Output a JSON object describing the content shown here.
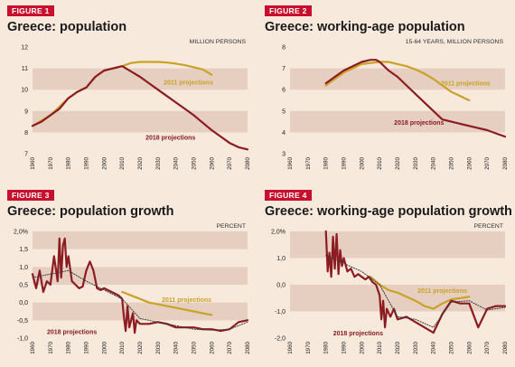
{
  "colors": {
    "background": "#f7e9dc",
    "band": "#e6cfc0",
    "badge": "#c8102e",
    "series_2018": "#8c1c22",
    "series_2011": "#c9a227",
    "trend": "#3a3a3a"
  },
  "panels": [
    {
      "badge": "FIGURE 1",
      "title": "Greece: population",
      "unit": "MILLION PERSONS"
    },
    {
      "badge": "FIGURE 2",
      "title": "Greece: working-age population",
      "unit": "15-64 YEARS, MILLION PERSONS"
    },
    {
      "badge": "FIGURE 3",
      "title": "Greece: population growth",
      "unit": "PERCENT"
    },
    {
      "badge": "FIGURE 4",
      "title": "Greece: working-age population growth",
      "unit": "PERCENT"
    }
  ],
  "chart_data": [
    {
      "type": "line",
      "title": "Greece: population",
      "ylabel": "MILLION PERSONS",
      "ylim": [
        7,
        12
      ],
      "yticks": [
        7,
        8,
        9,
        10,
        11,
        12
      ],
      "ytick_labels": [
        "7",
        "8",
        "9",
        "10",
        "11",
        "12"
      ],
      "xlim": [
        1960,
        2080
      ],
      "xticks": [
        1960,
        1970,
        1980,
        1990,
        2000,
        2010,
        2020,
        2030,
        2040,
        2050,
        2060,
        2070,
        2080
      ],
      "grid": "horizontal bands",
      "series": [
        {
          "name": "2011 projections",
          "x": [
            1960,
            1970,
            1980,
            1985,
            1990,
            1995,
            2000,
            2005,
            2010,
            2015,
            2020,
            2025,
            2030,
            2035,
            2040,
            2045,
            2050,
            2055,
            2060
          ],
          "y": [
            8.3,
            8.8,
            9.6,
            9.9,
            10.1,
            10.6,
            10.9,
            11.0,
            11.1,
            11.25,
            11.3,
            11.3,
            11.3,
            11.27,
            11.22,
            11.15,
            11.05,
            10.95,
            10.7
          ]
        },
        {
          "name": "2018 projections",
          "x": [
            1960,
            1965,
            1970,
            1975,
            1980,
            1985,
            1990,
            1995,
            2000,
            2005,
            2010,
            2015,
            2020,
            2025,
            2030,
            2035,
            2040,
            2045,
            2050,
            2055,
            2060,
            2065,
            2070,
            2075,
            2080
          ],
          "y": [
            8.3,
            8.5,
            8.8,
            9.1,
            9.6,
            9.9,
            10.1,
            10.6,
            10.9,
            11.0,
            11.1,
            10.85,
            10.6,
            10.3,
            10.0,
            9.7,
            9.4,
            9.1,
            8.8,
            8.45,
            8.1,
            7.8,
            7.5,
            7.3,
            7.2
          ]
        }
      ],
      "annotations": [
        "2011 projections",
        "2018 projections"
      ]
    },
    {
      "type": "line",
      "title": "Greece: working-age population",
      "ylabel": "15-64 YEARS, MILLION PERSONS",
      "ylim": [
        3,
        8
      ],
      "yticks": [
        3,
        4,
        5,
        6,
        7,
        8
      ],
      "ytick_labels": [
        "3",
        "4",
        "5",
        "6",
        "7",
        "8"
      ],
      "xlim": [
        1960,
        2080
      ],
      "xticks": [
        1960,
        1970,
        1980,
        1990,
        2000,
        2010,
        2020,
        2030,
        2040,
        2050,
        2060,
        2070,
        2080
      ],
      "grid": "horizontal bands",
      "series": [
        {
          "name": "2011 projections",
          "x": [
            1980,
            1985,
            1990,
            1995,
            2000,
            2005,
            2010,
            2015,
            2020,
            2025,
            2030,
            2035,
            2040,
            2045,
            2050,
            2055,
            2060
          ],
          "y": [
            6.2,
            6.5,
            6.8,
            7.0,
            7.2,
            7.25,
            7.3,
            7.3,
            7.2,
            7.1,
            6.95,
            6.75,
            6.5,
            6.2,
            5.9,
            5.7,
            5.5
          ]
        },
        {
          "name": "2018 projections",
          "x": [
            1980,
            1985,
            1990,
            1995,
            2000,
            2005,
            2008,
            2010,
            2015,
            2020,
            2025,
            2030,
            2035,
            2040,
            2045,
            2050,
            2055,
            2060,
            2065,
            2070,
            2075,
            2080
          ],
          "y": [
            6.3,
            6.6,
            6.9,
            7.1,
            7.3,
            7.4,
            7.4,
            7.3,
            6.9,
            6.6,
            6.2,
            5.8,
            5.4,
            5.0,
            4.6,
            4.5,
            4.4,
            4.3,
            4.2,
            4.1,
            3.95,
            3.8
          ]
        }
      ],
      "annotations": [
        "2011 projections",
        "2018 projections"
      ]
    },
    {
      "type": "line",
      "title": "Greece: population growth",
      "ylabel": "PERCENT",
      "ylim": [
        -1.0,
        2.0
      ],
      "yticks": [
        2.0,
        1.5,
        1.0,
        0.5,
        0.0,
        -0.5,
        -1.0
      ],
      "ytick_labels": [
        "2,0%",
        "1,5",
        "1,0",
        "0,5",
        "0,0",
        "-0,5",
        "-1,0"
      ],
      "xlim": [
        1960,
        2080
      ],
      "xticks": [
        1960,
        1970,
        1980,
        1990,
        2000,
        2010,
        2020,
        2030,
        2040,
        2050,
        2060,
        2070,
        2080
      ],
      "grid": "horizontal bands",
      "series": [
        {
          "name": "2011 projections",
          "x": [
            2010,
            2015,
            2020,
            2025,
            2030,
            2035,
            2040,
            2045,
            2050,
            2055,
            2060
          ],
          "y": [
            0.3,
            0.2,
            0.1,
            0.0,
            -0.05,
            -0.1,
            -0.15,
            -0.2,
            -0.25,
            -0.3,
            -0.35
          ]
        },
        {
          "name": "2018 projections",
          "x": [
            1960,
            1962,
            1964,
            1966,
            1968,
            1970,
            1972,
            1974,
            1975,
            1976,
            1977,
            1978,
            1979,
            1980,
            1982,
            1984,
            1986,
            1988,
            1990,
            1992,
            1994,
            1996,
            1998,
            2000,
            2002,
            2004,
            2006,
            2008,
            2010,
            2011,
            2012,
            2013,
            2014,
            2015,
            2016,
            2017,
            2018,
            2020,
            2025,
            2030,
            2035,
            2040,
            2045,
            2050,
            2055,
            2060,
            2065,
            2070,
            2075,
            2080
          ],
          "y": [
            0.8,
            0.4,
            0.9,
            0.3,
            0.6,
            0.5,
            1.3,
            0.6,
            1.8,
            0.7,
            1.6,
            1.8,
            1.0,
            1.3,
            0.6,
            0.5,
            0.4,
            0.45,
            0.9,
            1.15,
            0.9,
            0.4,
            0.35,
            0.4,
            0.35,
            0.3,
            0.25,
            0.2,
            0.1,
            -0.4,
            -0.8,
            -0.1,
            -0.7,
            -0.5,
            -0.3,
            -0.85,
            -0.5,
            -0.6,
            -0.6,
            -0.55,
            -0.6,
            -0.7,
            -0.7,
            -0.7,
            -0.75,
            -0.75,
            -0.8,
            -0.75,
            -0.55,
            -0.5
          ]
        },
        {
          "name": "",
          "style": "dotted",
          "x": [
            1960,
            1970,
            1980,
            1990,
            2000,
            2010,
            2020,
            2030,
            2040,
            2050,
            2060,
            2070,
            2080
          ],
          "y": [
            0.7,
            0.8,
            0.9,
            0.6,
            0.35,
            0.1,
            -0.45,
            -0.55,
            -0.65,
            -0.75,
            -0.78,
            -0.75,
            -0.55
          ]
        }
      ],
      "annotations": [
        "2011 projections",
        "2018 projections"
      ]
    },
    {
      "type": "line",
      "title": "Greece: working-age population growth",
      "ylabel": "PERCENT",
      "ylim": [
        -2.0,
        2.0
      ],
      "yticks": [
        2.0,
        1.0,
        0.0,
        -1.0,
        -2.0
      ],
      "ytick_labels": [
        "2,0%",
        "1,0",
        "0,0",
        "-1,0",
        "-2,0"
      ],
      "xlim": [
        1960,
        2080
      ],
      "xticks": [
        1960,
        1970,
        1980,
        1990,
        2000,
        2010,
        2020,
        2030,
        2040,
        2050,
        2060,
        2070,
        2080
      ],
      "grid": "horizontal bands",
      "series": [
        {
          "name": "2011 projections",
          "x": [
            2005,
            2010,
            2015,
            2020,
            2025,
            2030,
            2035,
            2040,
            2045,
            2050,
            2055,
            2060
          ],
          "y": [
            0.3,
            0.0,
            -0.2,
            -0.3,
            -0.45,
            -0.6,
            -0.8,
            -0.9,
            -0.7,
            -0.55,
            -0.5,
            -0.45
          ]
        },
        {
          "name": "2018 projections",
          "x": [
            1980,
            1981,
            1982,
            1983,
            1984,
            1985,
            1986,
            1987,
            1988,
            1989,
            1990,
            1992,
            1994,
            1996,
            1998,
            2000,
            2002,
            2004,
            2006,
            2008,
            2010,
            2011,
            2012,
            2013,
            2014,
            2016,
            2018,
            2020,
            2025,
            2030,
            2035,
            2040,
            2045,
            2050,
            2055,
            2060,
            2065,
            2070,
            2075,
            2080
          ],
          "y": [
            2.0,
            0.5,
            1.2,
            0.3,
            1.8,
            0.6,
            1.9,
            0.4,
            1.3,
            0.7,
            1.0,
            0.5,
            0.6,
            0.3,
            0.4,
            0.3,
            0.2,
            0.3,
            0.1,
            0.0,
            -0.4,
            -1.3,
            -0.6,
            -1.6,
            -0.9,
            -1.2,
            -0.9,
            -1.3,
            -1.2,
            -1.4,
            -1.6,
            -1.8,
            -1.1,
            -0.6,
            -0.7,
            -0.7,
            -1.6,
            -0.9,
            -0.8,
            -0.8
          ]
        },
        {
          "name": "",
          "style": "dotted",
          "x": [
            1980,
            1990,
            2000,
            2010,
            2020,
            2030,
            2040,
            2050,
            2060,
            2070,
            2080
          ],
          "y": [
            1.1,
            0.8,
            0.5,
            0.0,
            -1.2,
            -1.3,
            -1.6,
            -0.65,
            -0.6,
            -0.95,
            -0.85
          ]
        }
      ],
      "annotations": [
        "2011 projections",
        "2018 projections"
      ]
    }
  ]
}
